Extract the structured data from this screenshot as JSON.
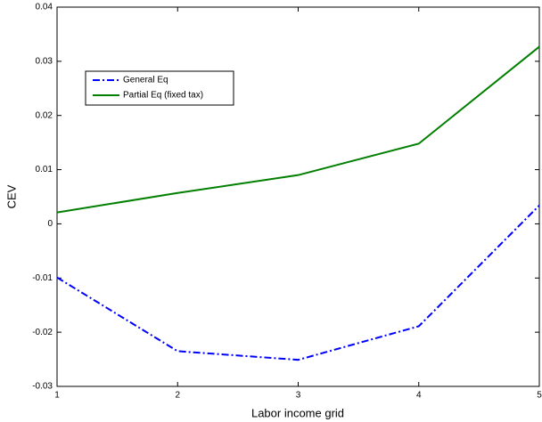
{
  "chart_data": {
    "type": "line",
    "xlabel": "Labor income grid",
    "ylabel": "CEV",
    "x": [
      1,
      2,
      3,
      4,
      5
    ],
    "series": [
      {
        "name": "General Eq",
        "color": "#0000ff",
        "style": "dashdot",
        "values": [
          -0.0099,
          -0.0235,
          -0.0251,
          -0.0189,
          0.0034
        ]
      },
      {
        "name": "Partial Eq (fixed tax)",
        "color": "#007f00",
        "style": "solid",
        "values": [
          0.0021,
          0.0057,
          0.009,
          0.0148,
          0.0327
        ]
      }
    ],
    "xlim": [
      1,
      5
    ],
    "xticks": [
      1,
      2,
      3,
      4,
      5
    ],
    "ylim": [
      -0.03,
      0.04
    ],
    "yticks": [
      -0.03,
      -0.02,
      -0.01,
      0,
      0.01,
      0.02,
      0.03,
      0.04
    ],
    "grid": false,
    "legend": "upper left"
  }
}
